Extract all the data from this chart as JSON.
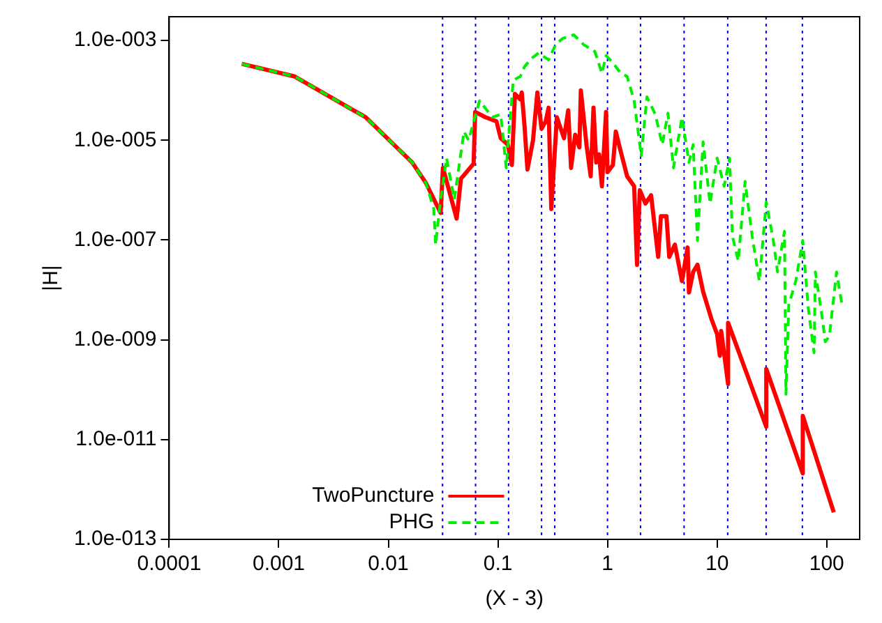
{
  "chart_data": {
    "type": "line",
    "xlabel": "(X - 3)",
    "ylabel": "|H|",
    "log": "xy",
    "grid": false,
    "legend": "bottom left",
    "marker": "none",
    "xlim": [
      0.0001,
      200
    ],
    "ylim": [
      1e-13,
      0.003
    ],
    "xticks": [
      0.0001,
      0.001,
      0.01,
      0.1,
      1,
      10,
      100
    ],
    "yticks": [
      {
        "value": 1e-13,
        "label": "1.0e-013"
      },
      {
        "value": 1e-11,
        "label": "1.0e-011"
      },
      {
        "value": 1e-09,
        "label": "1.0e-009"
      },
      {
        "value": 1e-07,
        "label": "1.0e-007"
      },
      {
        "value": 1e-05,
        "label": "1.0e-005"
      },
      {
        "value": 0.001,
        "label": "1.0e-003"
      }
    ],
    "series": [
      {
        "name": "TwoPuncture",
        "color": "#ff0000",
        "line_style": "solid",
        "x": [
          0.00046,
          0.0014,
          0.0062,
          0.0165,
          0.022,
          0.03,
          0.0315,
          0.042,
          0.046,
          0.06,
          0.062,
          0.077,
          0.097,
          0.106,
          0.123,
          0.134,
          0.143,
          0.16,
          0.165,
          0.175,
          0.186,
          0.209,
          0.229,
          0.25,
          0.273,
          0.29,
          0.307,
          0.345,
          0.401,
          0.438,
          0.465,
          0.507,
          0.554,
          0.571,
          0.643,
          0.702,
          0.745,
          0.789,
          0.838,
          0.889,
          0.97,
          1.0,
          1.12,
          1.19,
          1.3,
          1.51,
          1.75,
          1.86,
          1.97,
          2.22,
          2.5,
          2.9,
          3.07,
          3.45,
          3.66,
          4.12,
          4.78,
          5.38,
          5.54,
          6.05,
          6.62,
          7.45,
          8.89,
          10,
          10.6,
          10.9,
          12.6,
          12.6,
          28.1,
          28.1,
          60.5,
          60.5,
          116
        ],
        "values": [
          0.00034,
          0.00019,
          2.9e-05,
          3.6e-06,
          1.4e-06,
          3.5e-07,
          2.8e-06,
          2.7e-07,
          1.7e-06,
          3.4e-06,
          3.7e-05,
          2.9e-05,
          2.4e-05,
          1.1e-05,
          8.2e-06,
          3.2e-06,
          8.5e-05,
          6.6e-05,
          9.1e-05,
          1.9e-05,
          2.6e-06,
          1e-05,
          9.1e-05,
          1.7e-05,
          2.4e-05,
          4.5e-05,
          4.2e-07,
          2.9e-05,
          1.1e-05,
          4e-05,
          2.8e-06,
          1.3e-05,
          7.2e-06,
          0.0001,
          8.2e-06,
          1.9e-06,
          4.5e-05,
          3.6e-06,
          5.2e-06,
          1.2e-06,
          3.7e-05,
          2.3e-06,
          3.2e-06,
          1.5e-05,
          6.8e-06,
          1.9e-06,
          1.2e-06,
          3.2e-08,
          1e-06,
          5.4e-07,
          7.9e-07,
          4.6e-08,
          3e-07,
          3e-07,
          4.6e-08,
          8.1e-08,
          1.5e-08,
          7.1e-08,
          8.9e-09,
          2.3e-08,
          3.2e-08,
          9.3e-09,
          2.6e-09,
          1.3e-09,
          4.8e-10,
          1.5e-09,
          1.3e-10,
          2.2e-09,
          1.8e-11,
          2.6e-10,
          2.1e-12,
          3e-11,
          3.5e-13
        ]
      },
      {
        "name": "PHG",
        "color": "#00ee00",
        "line_style": "dashed",
        "x": [
          0.00046,
          0.0014,
          0.0062,
          0.0165,
          0.022,
          0.026,
          0.027,
          0.03,
          0.034,
          0.04,
          0.049,
          0.054,
          0.068,
          0.089,
          0.106,
          0.119,
          0.138,
          0.16,
          0.175,
          0.203,
          0.235,
          0.29,
          0.336,
          0.389,
          0.492,
          0.605,
          0.767,
          0.889,
          0.97,
          1.12,
          1.3,
          1.51,
          1.75,
          2.03,
          2.29,
          2.73,
          3.16,
          3.56,
          4.0,
          4.78,
          5.54,
          6.05,
          6.62,
          7.45,
          8.63,
          10,
          11.6,
          13.0,
          13.8,
          15.6,
          18.0,
          20.9,
          24.3,
          28.1,
          32.6,
          35.6,
          41.2,
          42.5,
          45.1,
          52.2,
          60.5,
          68.1,
          76.7,
          78.9,
          91.5,
          97,
          106,
          123,
          138
        ],
        "values": [
          0.00034,
          0.00019,
          2.9e-05,
          3.6e-06,
          1.4e-06,
          4.2e-07,
          8.1e-08,
          6.5e-07,
          4.4e-06,
          6.5e-07,
          1.5e-05,
          1e-05,
          6.2e-05,
          2.9e-05,
          3.3e-05,
          2.8e-06,
          0.00016,
          0.00019,
          0.0003,
          0.00044,
          0.00056,
          0.00041,
          0.00083,
          0.0011,
          0.0013,
          0.00083,
          0.0006,
          0.00022,
          0.0005,
          0.00036,
          0.00023,
          0.00019,
          6.2e-05,
          4.9e-06,
          7.4e-05,
          3.3e-05,
          8.2e-06,
          3.5e-05,
          2.8e-06,
          2.9e-05,
          3.6e-06,
          8.2e-06,
          9.8e-08,
          9.3e-06,
          5.4e-07,
          4.4e-06,
          1.2e-06,
          4.4e-06,
          1.2e-07,
          3.8e-08,
          1.5e-06,
          1.2e-07,
          1.5e-08,
          5.8e-07,
          9.8e-08,
          2.3e-08,
          1.5e-07,
          8.1e-11,
          5e-09,
          1.5e-08,
          9.8e-08,
          4.1e-09,
          5.5e-10,
          2.3e-08,
          2.6e-09,
          9.1e-10,
          1.2e-09,
          2.3e-08,
          5e-09
        ]
      }
    ],
    "ref_lines": [
      {
        "axis": "x",
        "value": 0.03125,
        "color": "#0000ff",
        "line_style": "dotted"
      },
      {
        "axis": "x",
        "value": 0.0625,
        "color": "#0000ff",
        "line_style": "dotted"
      },
      {
        "axis": "x",
        "value": 0.125,
        "color": "#0000ff",
        "line_style": "dotted"
      },
      {
        "axis": "x",
        "value": 0.25,
        "color": "#0000ff",
        "line_style": "dotted"
      },
      {
        "axis": "x",
        "value": 0.33,
        "color": "#0000ff",
        "line_style": "dotted"
      },
      {
        "axis": "x",
        "value": 1,
        "color": "#0000ff",
        "line_style": "dotted"
      },
      {
        "axis": "x",
        "value": 2,
        "color": "#0000ff",
        "line_style": "dotted"
      },
      {
        "axis": "x",
        "value": 5,
        "color": "#0000ff",
        "line_style": "dotted"
      },
      {
        "axis": "x",
        "value": 12.5,
        "color": "#0000ff",
        "line_style": "dotted"
      },
      {
        "axis": "x",
        "value": 28,
        "color": "#0000ff",
        "line_style": "dotted"
      },
      {
        "axis": "x",
        "value": 60,
        "color": "#0000ff",
        "line_style": "dotted"
      }
    ]
  }
}
